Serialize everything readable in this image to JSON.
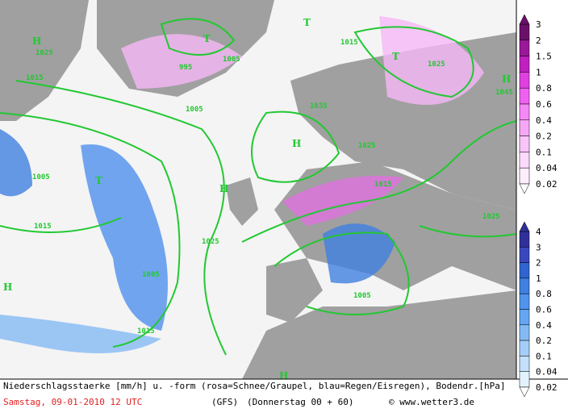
{
  "map": {
    "labels": [
      "1025",
      "1015",
      "1005",
      "1015",
      "1005",
      "1015",
      "995",
      "1005",
      "1035",
      "1025",
      "1025",
      "1015",
      "1025",
      "1005",
      "1015",
      "1045",
      "1025",
      "1005",
      "H",
      "H",
      "H",
      "H",
      "H",
      "H",
      "T",
      "T",
      "T",
      "T"
    ],
    "legend_snow": {
      "labels": [
        3,
        2,
        1.5,
        1,
        0.8,
        0.6,
        0.4,
        0.2,
        0.1,
        0.04,
        0.02
      ],
      "colors": [
        "#6a106a",
        "#9a189a",
        "#c020c0",
        "#e040e0",
        "#f060f0",
        "#f488f4",
        "#f6a8f6",
        "#f9c4f9",
        "#fbdafb",
        "#fdeefd"
      ]
    },
    "legend_rain": {
      "labels": [
        4,
        3,
        2,
        1,
        0.8,
        0.6,
        0.4,
        0.2,
        0.1,
        0.04,
        0.02
      ],
      "colors": [
        "#30309a",
        "#3a48c0",
        "#3064d0",
        "#4080e0",
        "#5094ee",
        "#64a6f2",
        "#84baf4",
        "#a4cef8",
        "#c4e0fa",
        "#e2f2fd"
      ]
    },
    "footer": {
      "line1": "Niederschlagsstaerke [mm/h] u. -form (rosa=Schnee/Graupel, blau=Regen/Eisregen), Bodendr.[hPa]",
      "date": "Samstag, 09-01-2010  12 UTC",
      "model": "(GFS)",
      "run": "(Donnerstag 00 + 60)",
      "credit": "© www.wetter3.de"
    }
  }
}
